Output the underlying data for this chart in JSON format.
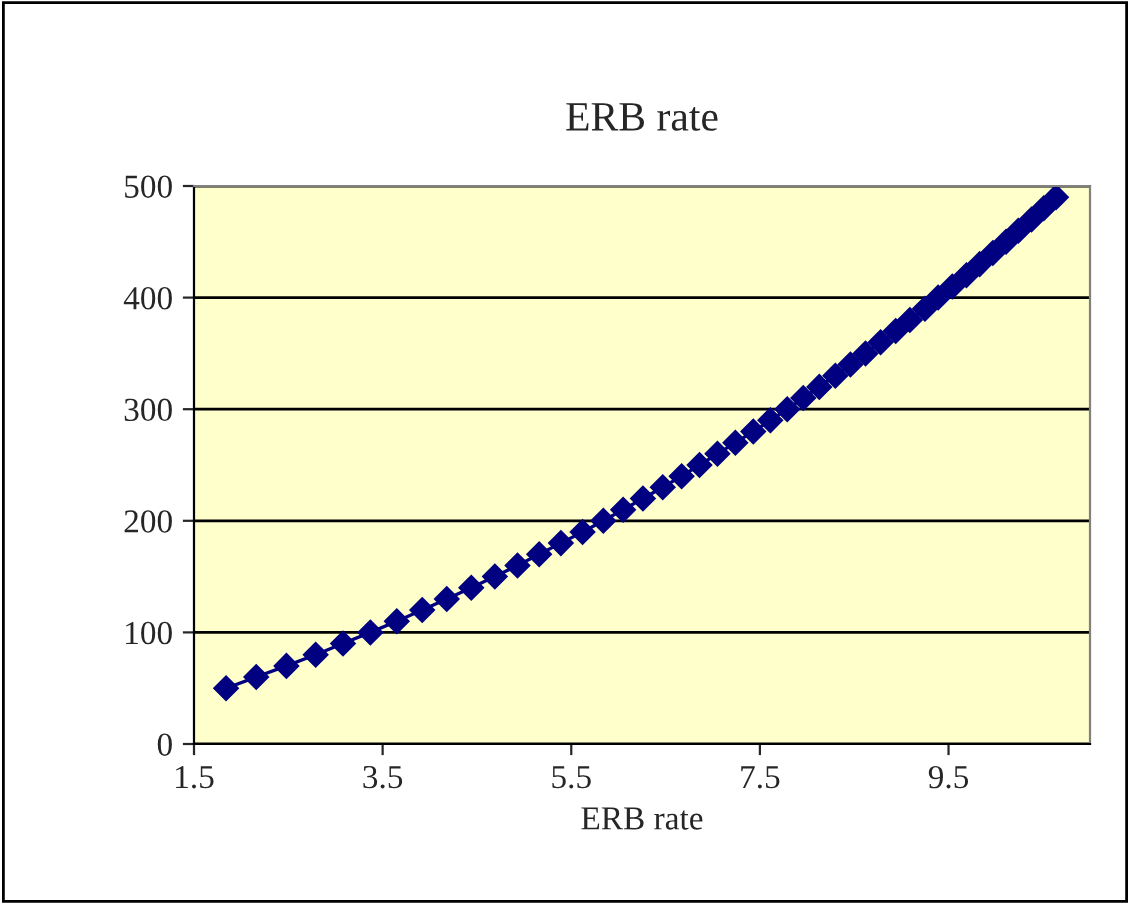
{
  "chart_data": {
    "type": "line",
    "title": "ERB rate",
    "xlabel": "ERB rate",
    "x": [
      1.84,
      2.16,
      2.48,
      2.79,
      3.08,
      3.37,
      3.65,
      3.92,
      4.18,
      4.44,
      4.69,
      4.93,
      5.16,
      5.39,
      5.62,
      5.84,
      6.05,
      6.26,
      6.47,
      6.67,
      6.86,
      7.05,
      7.24,
      7.43,
      7.61,
      7.79,
      7.96,
      8.13,
      8.3,
      8.46,
      8.62,
      8.78,
      8.94,
      9.09,
      9.25,
      9.39,
      9.54,
      9.69,
      9.83,
      9.97,
      10.11,
      10.24,
      10.38,
      10.51,
      10.64
    ],
    "series": [
      {
        "color": "#000080",
        "values": [
          50,
          60,
          70,
          80,
          90,
          100,
          110,
          120,
          130,
          140,
          150,
          160,
          170,
          180,
          190,
          200,
          210,
          220,
          230,
          240,
          250,
          260,
          270,
          280,
          290,
          300,
          310,
          320,
          330,
          340,
          350,
          360,
          370,
          380,
          390,
          400,
          410,
          420,
          430,
          440,
          450,
          460,
          470,
          480,
          490
        ]
      }
    ],
    "xlim": [
      1.5,
      11
    ],
    "xticks": [
      1.5,
      3.5,
      5.5,
      7.5,
      9.5
    ],
    "ylim": [
      0,
      500
    ],
    "yticks": [
      0,
      100,
      200,
      300,
      400,
      500
    ],
    "grid": "y",
    "marker": "diamond",
    "line_style": "solid",
    "legend": false
  }
}
